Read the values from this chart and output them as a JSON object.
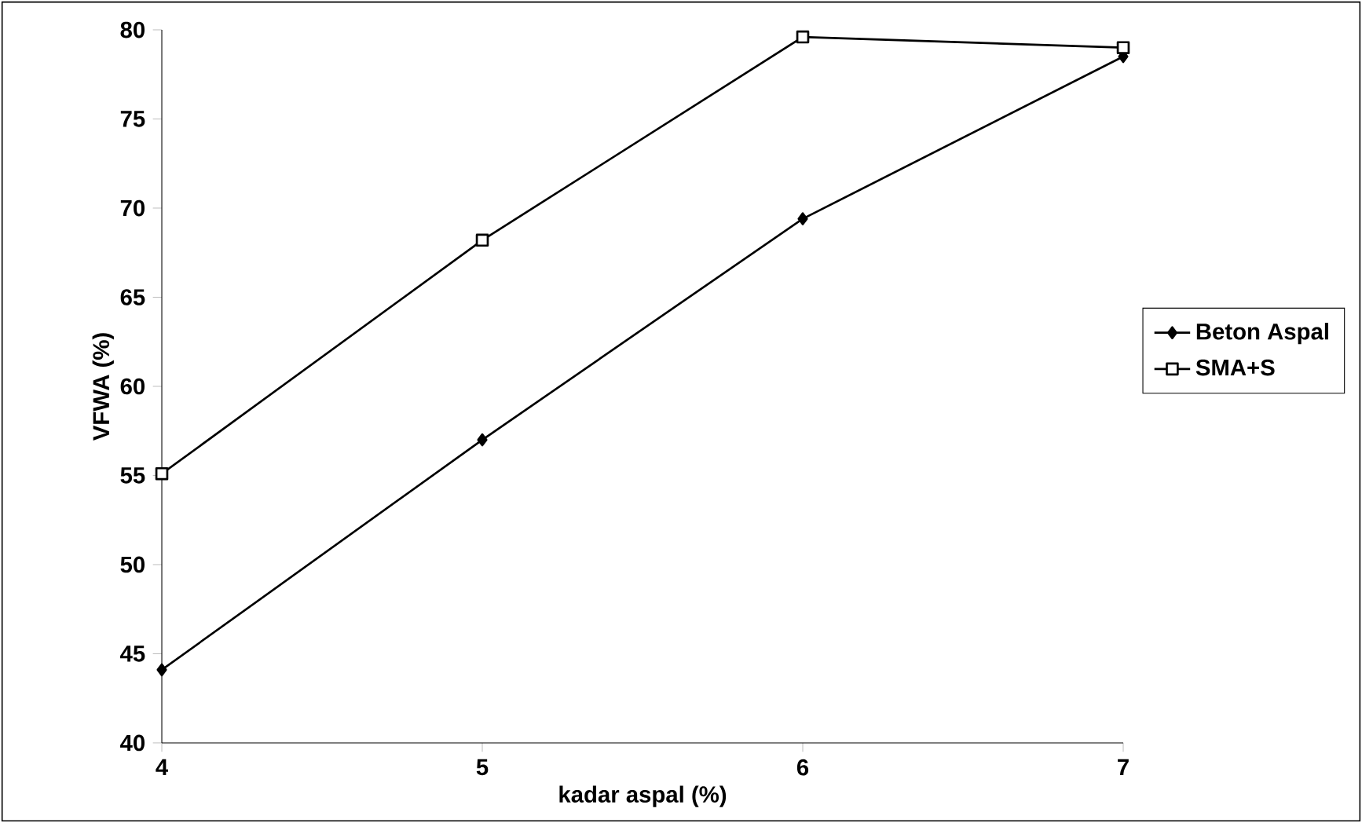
{
  "chart_data": {
    "type": "line",
    "xlabel": "kadar aspal (%)",
    "ylabel": "VFWA (%)",
    "x": [
      4,
      5,
      6,
      7
    ],
    "series": [
      {
        "name": "Beton Aspal",
        "color": "#000000",
        "marker": "diamond",
        "values": [
          44.1,
          57.0,
          69.4,
          78.5
        ]
      },
      {
        "name": "SMA+S",
        "color": "#000000",
        "marker": "square",
        "values": [
          55.1,
          68.2,
          79.6,
          79.0
        ]
      }
    ],
    "xlim": [
      4,
      7
    ],
    "ylim": [
      40,
      80
    ],
    "xticks": [
      4,
      5,
      6,
      7
    ],
    "yticks": [
      40,
      45,
      50,
      55,
      60,
      65,
      70,
      75,
      80
    ],
    "grid": false,
    "legend": "right"
  }
}
